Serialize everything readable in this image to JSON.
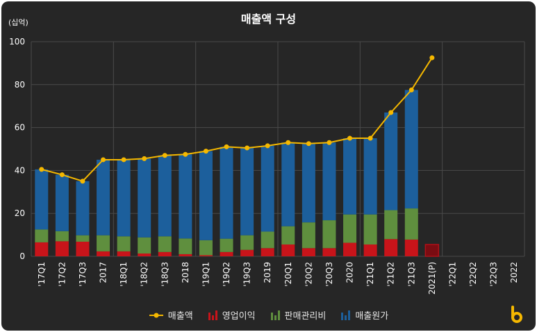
{
  "colors": {
    "background": "#262626",
    "grid": "#4a4a4a",
    "revenue_line": "#f5b800",
    "operating_profit": "#c8141a",
    "sga": "#5f8f3e",
    "cogs": "#1c5f9c",
    "forecast_border": "#b01018",
    "logo": "#f5b800"
  },
  "chart_data": {
    "type": "bar",
    "title": "매출액 구성",
    "unit_label": "(십억)",
    "ylim": [
      0,
      100
    ],
    "yticks": [
      0,
      20,
      40,
      60,
      80,
      100
    ],
    "grid": true,
    "legend_position": "bottom",
    "categories": [
      "'17Q1",
      "'17Q2",
      "'17Q3",
      "2017",
      "'18Q1",
      "'18Q2",
      "'18Q3",
      "2018",
      "'19Q1",
      "'19Q2",
      "'19Q3",
      "2019",
      "'20Q1",
      "'20Q2",
      "'20Q3",
      "2020",
      "'21Q1",
      "'21Q2",
      "'21Q3",
      "2021(P)",
      "'22Q1",
      "'22Q2",
      "'22Q3",
      "2022"
    ],
    "series": [
      {
        "name": "매출액",
        "kind": "line",
        "values": [
          40.5,
          38,
          35,
          45,
          45,
          45.5,
          47,
          47.5,
          49,
          51,
          50.5,
          51.5,
          53,
          52.5,
          53,
          55,
          55,
          67,
          77.5,
          92.5,
          null,
          null,
          null,
          null
        ]
      },
      {
        "name": "영업이익",
        "kind": "bar",
        "values": [
          6.5,
          7,
          6.8,
          2.3,
          2.3,
          1.3,
          2,
          1,
          0.5,
          2,
          3,
          3.8,
          5.5,
          3.8,
          3.8,
          6.3,
          5.5,
          8,
          7.8,
          5.5,
          null,
          null,
          null,
          null
        ]
      },
      {
        "name": "판매관리비",
        "kind": "bar",
        "values": [
          6,
          4.7,
          3,
          7.5,
          7,
          7.5,
          7.3,
          7.3,
          7,
          6.2,
          6.8,
          7.7,
          8.5,
          12,
          13,
          13.2,
          14,
          13.5,
          14.5,
          null,
          null,
          null,
          null,
          null
        ]
      },
      {
        "name": "매출원가",
        "kind": "bar",
        "values": [
          28,
          26.3,
          25.2,
          35.2,
          35.7,
          36.7,
          37.7,
          39.2,
          41.5,
          42.8,
          40.7,
          40,
          39,
          36.7,
          36.2,
          35.5,
          35.5,
          45.5,
          55.2,
          null,
          null,
          null,
          null,
          null
        ]
      }
    ]
  },
  "legend": {
    "items": [
      {
        "label": "매출액",
        "icon": "line-marker-icon"
      },
      {
        "label": "영업이익",
        "icon": "bar-icon"
      },
      {
        "label": "판매관리비",
        "icon": "bar-icon"
      },
      {
        "label": "매출원가",
        "icon": "bar-icon"
      }
    ]
  }
}
